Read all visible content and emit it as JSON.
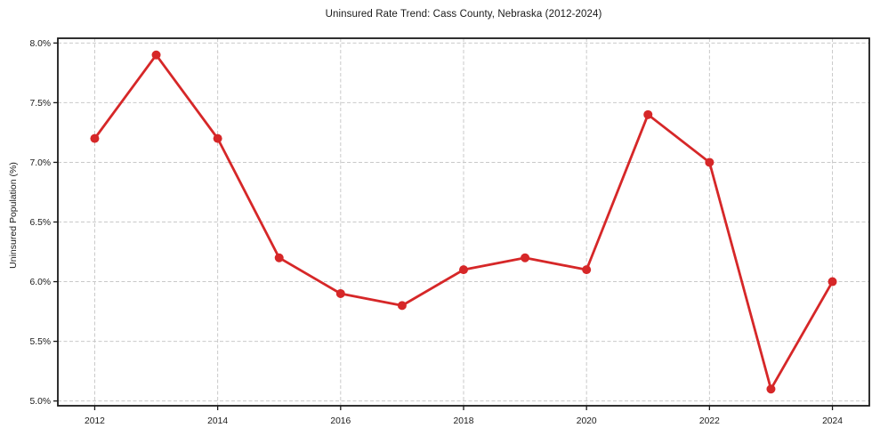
{
  "chart_data": {
    "type": "line",
    "title": "Uninsured Rate Trend: Cass County, Nebraska (2012-2024)",
    "xlabel": "",
    "ylabel": "Uninsured Population (%)",
    "x": [
      2012,
      2013,
      2014,
      2015,
      2016,
      2017,
      2018,
      2019,
      2020,
      2021,
      2022,
      2023,
      2024
    ],
    "values": [
      7.2,
      7.9,
      7.2,
      6.2,
      5.9,
      5.8,
      6.1,
      6.2,
      6.1,
      7.4,
      7.0,
      5.1,
      6.0
    ],
    "x_ticks": [
      2012,
      2014,
      2016,
      2018,
      2020,
      2022,
      2024
    ],
    "x_tick_labels": [
      "2012",
      "2014",
      "2016",
      "2018",
      "2020",
      "2022",
      "2024"
    ],
    "y_ticks": [
      5.0,
      5.5,
      6.0,
      6.5,
      7.0,
      7.5,
      8.0
    ],
    "y_tick_labels": [
      "5.0%",
      "5.5%",
      "6.0%",
      "6.5%",
      "7.0%",
      "7.5%",
      "8.0%"
    ],
    "xlim": [
      2011.4,
      2024.6
    ],
    "ylim": [
      4.96,
      8.04
    ],
    "grid": true,
    "grid_style": "dashed",
    "legend": "none",
    "line_color": "#d62728",
    "marker": "circle",
    "marker_color": "#d62728",
    "grid_color": "#c9c9c9",
    "axis_color": "#1a1a1a",
    "background_color": "#ffffff"
  }
}
